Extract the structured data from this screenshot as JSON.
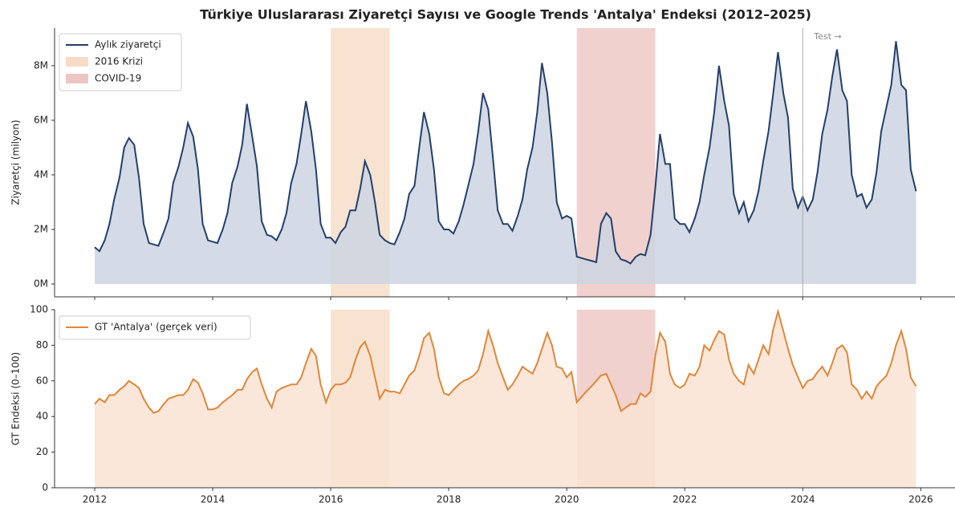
{
  "chart_data": [
    {
      "type": "line",
      "title": "Türkiye Uluslararası Ziyaretçi Sayısı ve Google Trends 'Antalya' Endeksi (2012–2025)",
      "y_label": "Ziyaretçi (milyon)",
      "x": [
        2012,
        2012.08,
        2012.17,
        2012.25,
        2012.33,
        2012.42,
        2012.5,
        2012.58,
        2012.67,
        2012.75,
        2012.83,
        2012.92,
        2013,
        2013.08,
        2013.17,
        2013.25,
        2013.33,
        2013.42,
        2013.5,
        2013.58,
        2013.67,
        2013.75,
        2013.83,
        2013.92,
        2014,
        2014.08,
        2014.17,
        2014.25,
        2014.33,
        2014.42,
        2014.5,
        2014.58,
        2014.67,
        2014.75,
        2014.83,
        2014.92,
        2015,
        2015.08,
        2015.17,
        2015.25,
        2015.33,
        2015.42,
        2015.5,
        2015.58,
        2015.67,
        2015.75,
        2015.83,
        2015.92,
        2016,
        2016.08,
        2016.17,
        2016.25,
        2016.33,
        2016.42,
        2016.5,
        2016.58,
        2016.67,
        2016.75,
        2016.83,
        2016.92,
        2017,
        2017.08,
        2017.17,
        2017.25,
        2017.33,
        2017.42,
        2017.5,
        2017.58,
        2017.67,
        2017.75,
        2017.83,
        2017.92,
        2018,
        2018.08,
        2018.17,
        2018.25,
        2018.33,
        2018.42,
        2018.5,
        2018.58,
        2018.67,
        2018.75,
        2018.83,
        2018.92,
        2019,
        2019.08,
        2019.17,
        2019.25,
        2019.33,
        2019.42,
        2019.5,
        2019.58,
        2019.67,
        2019.75,
        2019.83,
        2019.92,
        2020,
        2020.08,
        2020.17,
        2020.25,
        2020.33,
        2020.42,
        2020.5,
        2020.58,
        2020.67,
        2020.75,
        2020.83,
        2020.92,
        2021,
        2021.08,
        2021.17,
        2021.25,
        2021.33,
        2021.42,
        2021.5,
        2021.58,
        2021.67,
        2021.75,
        2021.83,
        2021.92,
        2022,
        2022.08,
        2022.17,
        2022.25,
        2022.33,
        2022.42,
        2022.5,
        2022.58,
        2022.67,
        2022.75,
        2022.83,
        2022.92,
        2023,
        2023.08,
        2023.17,
        2023.25,
        2023.33,
        2023.42,
        2023.5,
        2023.58,
        2023.67,
        2023.75,
        2023.83,
        2023.92,
        2024,
        2024.08,
        2024.17,
        2024.25,
        2024.33,
        2024.42,
        2024.5,
        2024.58,
        2024.67,
        2024.75,
        2024.83,
        2024.92,
        2025,
        2025.08,
        2025.17,
        2025.25,
        2025.33,
        2025.42,
        2025.5,
        2025.58,
        2025.67,
        2025.75,
        2025.83,
        2025.92
      ],
      "series": [
        {
          "name": "Aylık ziyaretçi",
          "color": "#243f6b",
          "fill": "#ccd5e2",
          "values": [
            1.35,
            1.2,
            1.6,
            2.2,
            3.1,
            3.9,
            5.0,
            5.35,
            5.1,
            3.9,
            2.2,
            1.5,
            1.45,
            1.4,
            1.9,
            2.4,
            3.7,
            4.3,
            5.0,
            5.9,
            5.4,
            4.2,
            2.2,
            1.6,
            1.55,
            1.5,
            2.0,
            2.6,
            3.7,
            4.3,
            5.1,
            6.6,
            5.4,
            4.3,
            2.3,
            1.8,
            1.75,
            1.6,
            2.0,
            2.6,
            3.7,
            4.4,
            5.5,
            6.7,
            5.6,
            4.2,
            2.2,
            1.7,
            1.7,
            1.5,
            1.9,
            2.1,
            2.7,
            2.7,
            3.5,
            4.5,
            4.0,
            3.0,
            1.8,
            1.6,
            1.5,
            1.45,
            1.9,
            2.4,
            3.3,
            3.6,
            5.0,
            6.3,
            5.5,
            4.2,
            2.3,
            2.0,
            2.0,
            1.85,
            2.3,
            2.9,
            3.6,
            4.4,
            5.6,
            7.0,
            6.4,
            4.6,
            2.7,
            2.2,
            2.2,
            1.95,
            2.5,
            3.1,
            4.2,
            5.0,
            6.3,
            8.1,
            7.0,
            5.2,
            3.0,
            2.4,
            2.5,
            2.4,
            1.0,
            0.95,
            0.9,
            0.85,
            0.8,
            2.2,
            2.6,
            2.4,
            1.2,
            0.9,
            0.85,
            0.75,
            1.0,
            1.1,
            1.05,
            1.8,
            3.5,
            5.5,
            4.4,
            4.4,
            2.4,
            2.2,
            2.2,
            1.9,
            2.4,
            3.0,
            4.0,
            5.0,
            6.3,
            8.0,
            6.7,
            5.8,
            3.3,
            2.6,
            3.0,
            2.3,
            2.7,
            3.4,
            4.5,
            5.6,
            7.0,
            8.5,
            7.0,
            6.1,
            3.5,
            2.8,
            3.2,
            2.7,
            3.1,
            4.1,
            5.5,
            6.4,
            7.6,
            8.6,
            7.1,
            6.7,
            4.0,
            3.2,
            3.3,
            2.8,
            3.1,
            4.1,
            5.6,
            6.5,
            7.3,
            8.9,
            7.3,
            7.1,
            4.2,
            3.4
          ]
        }
      ],
      "spans": [
        {
          "name": "2016 Krizi",
          "start": 2016,
          "end": 2017,
          "color": "#f6dcc6"
        },
        {
          "name": "COVID-19",
          "start": 2020.17,
          "end": 2021.5,
          "color": "#ecc6c2"
        }
      ],
      "annotations": [
        {
          "x": 2024,
          "text": "Test →"
        }
      ],
      "xlim": [
        2011.32,
        2026.58
      ],
      "xticks": [
        2012,
        2014,
        2016,
        2018,
        2020,
        2022,
        2024,
        2026
      ],
      "ylim": [
        -0.47,
        9.38
      ],
      "yticks": [
        {
          "value": 0,
          "label": "0M"
        },
        {
          "value": 2,
          "label": "2M"
        },
        {
          "value": 4,
          "label": "4M"
        },
        {
          "value": 6,
          "label": "6M"
        },
        {
          "value": 8,
          "label": "8M"
        }
      ],
      "legend": "upper left"
    },
    {
      "type": "line",
      "y_label": "GT Endeksi (0–100)",
      "x": [
        2012,
        2012.08,
        2012.17,
        2012.25,
        2012.33,
        2012.42,
        2012.5,
        2012.58,
        2012.67,
        2012.75,
        2012.83,
        2012.92,
        2013,
        2013.08,
        2013.17,
        2013.25,
        2013.33,
        2013.42,
        2013.5,
        2013.58,
        2013.67,
        2013.75,
        2013.83,
        2013.92,
        2014,
        2014.08,
        2014.17,
        2014.25,
        2014.33,
        2014.42,
        2014.5,
        2014.58,
        2014.67,
        2014.75,
        2014.83,
        2014.92,
        2015,
        2015.08,
        2015.17,
        2015.25,
        2015.33,
        2015.42,
        2015.5,
        2015.58,
        2015.67,
        2015.75,
        2015.83,
        2015.92,
        2016,
        2016.08,
        2016.17,
        2016.25,
        2016.33,
        2016.42,
        2016.5,
        2016.58,
        2016.67,
        2016.75,
        2016.83,
        2016.92,
        2017,
        2017.08,
        2017.17,
        2017.25,
        2017.33,
        2017.42,
        2017.5,
        2017.58,
        2017.67,
        2017.75,
        2017.83,
        2017.92,
        2018,
        2018.08,
        2018.17,
        2018.25,
        2018.33,
        2018.42,
        2018.5,
        2018.58,
        2018.67,
        2018.75,
        2018.83,
        2018.92,
        2019,
        2019.08,
        2019.17,
        2019.25,
        2019.33,
        2019.42,
        2019.5,
        2019.58,
        2019.67,
        2019.75,
        2019.83,
        2019.92,
        2020,
        2020.08,
        2020.17,
        2020.25,
        2020.33,
        2020.42,
        2020.5,
        2020.58,
        2020.67,
        2020.75,
        2020.83,
        2020.92,
        2021,
        2021.08,
        2021.17,
        2021.25,
        2021.33,
        2021.42,
        2021.5,
        2021.58,
        2021.67,
        2021.75,
        2021.83,
        2021.92,
        2022,
        2022.08,
        2022.17,
        2022.25,
        2022.33,
        2022.42,
        2022.5,
        2022.58,
        2022.67,
        2022.75,
        2022.83,
        2022.92,
        2023,
        2023.08,
        2023.17,
        2023.25,
        2023.33,
        2023.42,
        2023.5,
        2023.58,
        2023.67,
        2023.75,
        2023.83,
        2023.92,
        2024,
        2024.08,
        2024.17,
        2024.25,
        2024.33,
        2024.42,
        2024.5,
        2024.58,
        2024.67,
        2024.75,
        2024.83,
        2024.92,
        2025,
        2025.08,
        2025.17,
        2025.25,
        2025.33,
        2025.42,
        2025.5,
        2025.58,
        2025.67,
        2025.75,
        2025.83,
        2025.92
      ],
      "series": [
        {
          "name": "GT 'Antalya' (gerçek veri)",
          "color": "#e0873a",
          "fill": "#f9e3d2",
          "values": [
            47,
            50,
            48,
            52,
            52,
            55,
            57,
            60,
            58,
            56,
            50,
            45,
            42,
            43,
            47,
            50,
            51,
            52,
            52,
            55,
            61,
            59,
            53,
            44,
            44,
            45,
            48,
            50,
            52,
            55,
            55,
            61,
            65,
            67,
            58,
            50,
            45,
            54,
            56,
            57,
            58,
            58,
            62,
            70,
            78,
            74,
            58,
            48,
            55,
            58,
            58,
            59,
            62,
            72,
            79,
            82,
            74,
            62,
            50,
            55,
            54,
            54,
            53,
            58,
            63,
            66,
            74,
            84,
            87,
            78,
            62,
            53,
            52,
            55,
            58,
            60,
            61,
            63,
            66,
            75,
            88,
            80,
            70,
            62,
            55,
            58,
            63,
            68,
            66,
            64,
            70,
            78,
            87,
            80,
            68,
            67,
            62,
            65,
            48,
            51,
            54,
            57,
            60,
            63,
            64,
            58,
            52,
            43,
            45,
            47,
            47,
            53,
            51,
            54,
            74,
            87,
            82,
            64,
            58,
            56,
            58,
            64,
            63,
            68,
            80,
            77,
            83,
            88,
            86,
            72,
            64,
            60,
            58,
            69,
            64,
            72,
            80,
            75,
            89,
            99,
            88,
            78,
            69,
            62,
            56,
            60,
            61,
            65,
            68,
            63,
            70,
            78,
            80,
            76,
            58,
            55,
            50,
            54,
            50,
            57,
            60,
            63,
            70,
            80,
            88,
            78,
            62,
            57
          ]
        }
      ],
      "xlim": [
        2011.32,
        2026.58
      ],
      "xticks": [
        2012,
        2014,
        2016,
        2018,
        2020,
        2022,
        2024,
        2026
      ],
      "ylim": [
        0,
        100
      ],
      "yticks": [
        0,
        20,
        40,
        60,
        80,
        100
      ],
      "legend": "upper left"
    }
  ]
}
